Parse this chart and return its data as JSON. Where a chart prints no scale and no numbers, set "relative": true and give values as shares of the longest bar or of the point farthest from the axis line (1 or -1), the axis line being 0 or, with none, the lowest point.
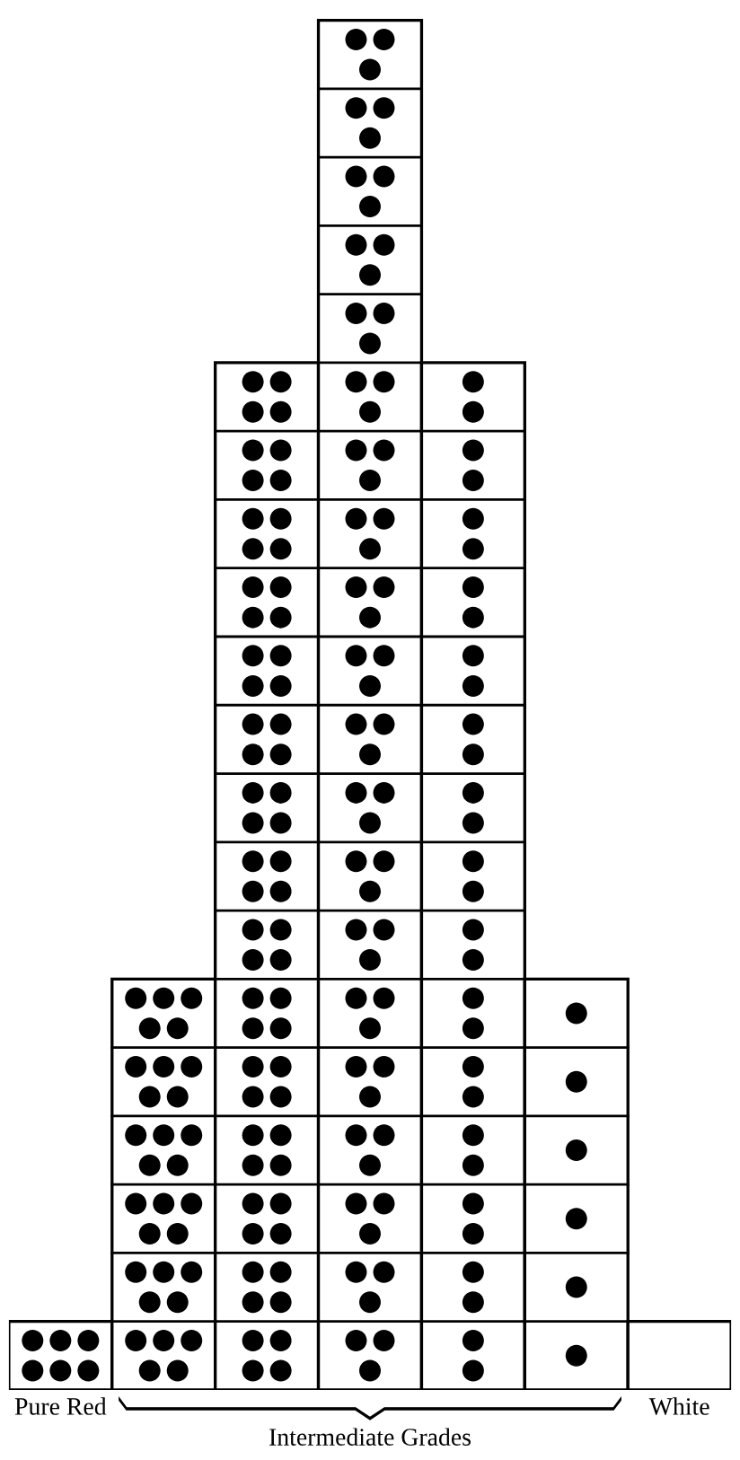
{
  "chart_data": {
    "type": "bar",
    "relative": true,
    "categories": [
      "Pure Red",
      null,
      null,
      null,
      null,
      null,
      "White"
    ],
    "values": [
      0.05,
      0.3,
      0.75,
      1.0,
      0.75,
      0.3,
      0.05
    ],
    "color": "#ffffff",
    "annotations": [
      "Intermediate Grades"
    ],
    "grid": false,
    "legend": false
  }
}
